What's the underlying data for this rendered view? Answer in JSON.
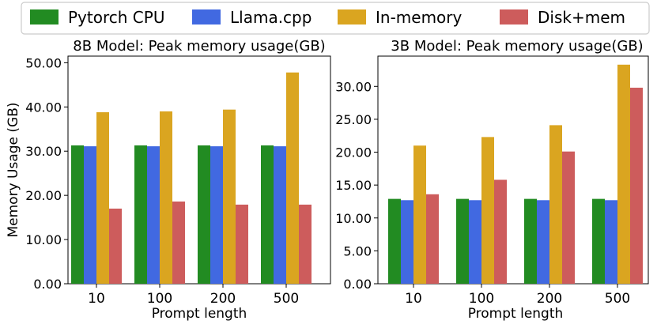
{
  "legend": {
    "entries": [
      {
        "label": "Pytorch CPU",
        "color": "#228b22"
      },
      {
        "label": "Llama.cpp",
        "color": "#4169e1"
      },
      {
        "label": "In-memory",
        "color": "#daa520"
      },
      {
        "label": "Disk+mem",
        "color": "#cd5c5c"
      }
    ]
  },
  "chart_data": [
    {
      "type": "bar",
      "title": "8B Model: Peak memory usage(GB)",
      "xlabel": "Prompt length",
      "ylabel": "Memory Usage (GB)",
      "categories": [
        "10",
        "100",
        "200",
        "500"
      ],
      "ylim": [
        0,
        51.5
      ],
      "yticks": [
        0,
        10,
        20,
        30,
        40,
        50
      ],
      "ytick_labels": [
        "0.00",
        "10.00",
        "20.00",
        "30.00",
        "40.00",
        "50.00"
      ],
      "series": [
        {
          "name": "Pytorch CPU",
          "values": [
            31.3,
            31.3,
            31.3,
            31.3
          ]
        },
        {
          "name": "Llama.cpp",
          "values": [
            31.1,
            31.1,
            31.1,
            31.1
          ]
        },
        {
          "name": "In-memory",
          "values": [
            38.8,
            39.0,
            39.4,
            47.8
          ]
        },
        {
          "name": "Disk+mem",
          "values": [
            17.0,
            18.6,
            17.9,
            17.9
          ]
        }
      ]
    },
    {
      "type": "bar",
      "title": "3B Model: Peak memory usage(GB)",
      "xlabel": "Prompt length",
      "ylabel": "",
      "categories": [
        "10",
        "100",
        "200",
        "500"
      ],
      "ylim": [
        0,
        34.6
      ],
      "yticks": [
        0,
        5,
        10,
        15,
        20,
        25,
        30
      ],
      "ytick_labels": [
        "0.00",
        "5.00",
        "10.00",
        "15.00",
        "20.00",
        "25.00",
        "30.00"
      ],
      "series": [
        {
          "name": "Pytorch CPU",
          "values": [
            12.9,
            12.9,
            12.9,
            12.9
          ]
        },
        {
          "name": "Llama.cpp",
          "values": [
            12.7,
            12.7,
            12.7,
            12.7
          ]
        },
        {
          "name": "In-memory",
          "values": [
            21.0,
            22.3,
            24.1,
            33.3
          ]
        },
        {
          "name": "Disk+mem",
          "values": [
            13.6,
            15.8,
            20.1,
            29.8
          ]
        }
      ]
    }
  ]
}
